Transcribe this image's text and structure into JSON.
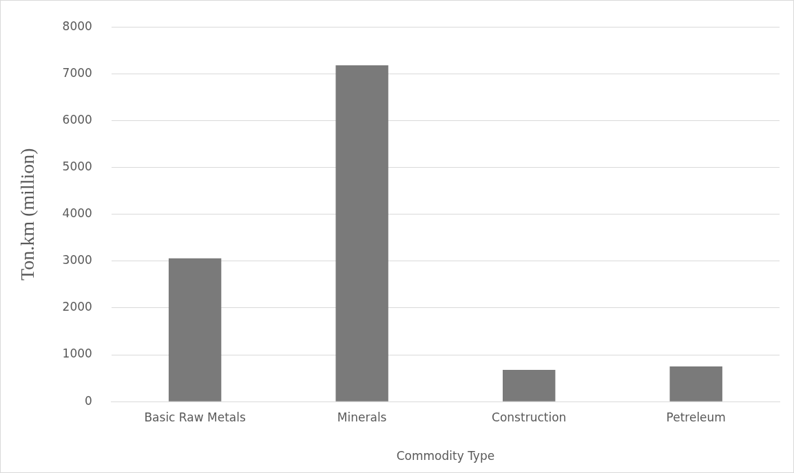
{
  "chart_data": {
    "type": "bar",
    "xlabel": "Commodity Type",
    "ylabel": "Ton.km (million)",
    "categories": [
      "Basic Raw Metals",
      "Minerals",
      "Construction",
      "Petreleum"
    ],
    "values": [
      3060,
      7180,
      680,
      750
    ],
    "color": "#7a7a7a",
    "ylim": [
      0,
      8000
    ],
    "yticks": [
      0,
      1000,
      2000,
      3000,
      4000,
      5000,
      6000,
      7000,
      8000
    ],
    "grid": "y"
  }
}
